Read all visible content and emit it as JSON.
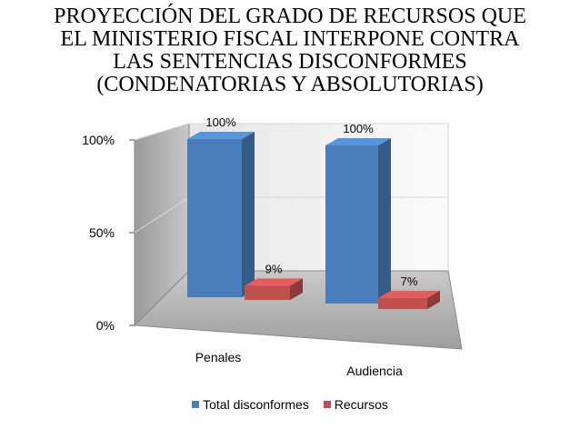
{
  "chart_data": {
    "type": "bar",
    "title_lines": [
      "PROYECCIÓN DEL GRADO DE RECURSOS QUE",
      "EL MINISTERIO FISCAL INTERPONE CONTRA",
      "LAS SENTENCIAS DISCONFORMES",
      "(CONDENATORIAS Y ABSOLUTORIAS)"
    ],
    "categories": [
      "Penales",
      "Audiencia"
    ],
    "series": [
      {
        "name": "Total disconformes",
        "values": [
          100,
          100
        ],
        "labels": [
          "100%",
          "100%"
        ],
        "color": "#4a7ebb"
      },
      {
        "name": "Recursos",
        "values": [
          9,
          7
        ],
        "labels": [
          "9%",
          "7%"
        ],
        "color": "#c0504d"
      }
    ],
    "y_ticks": [
      {
        "value": 0,
        "label": "0%"
      },
      {
        "value": 50,
        "label": "50%"
      },
      {
        "value": 100,
        "label": "100%"
      }
    ],
    "ylim": [
      0,
      100
    ],
    "grid": true,
    "legend_position": "bottom"
  }
}
